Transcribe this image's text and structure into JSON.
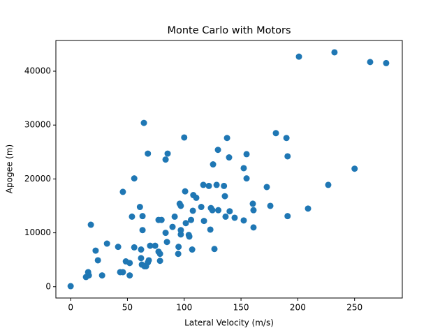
{
  "chart_data": {
    "type": "scatter",
    "title": "Monte Carlo with Motors",
    "xlabel": "Lateral Velocity (m/s)",
    "ylabel": "Apogee (m)",
    "color": "#1f77b4",
    "x": [
      0,
      13.5,
      15.4,
      16,
      17.8,
      22,
      24,
      27.7,
      32,
      41.8,
      43.6,
      46,
      46,
      48.6,
      52,
      52,
      54,
      56,
      56,
      61,
      62,
      62,
      62.7,
      63.3,
      63.3,
      64.5,
      65,
      66.4,
      68,
      68,
      68.8,
      70,
      74.4,
      77.4,
      77.4,
      78.7,
      78.7,
      80,
      83.6,
      83.6,
      84.8,
      85.4,
      89.7,
      91.6,
      94.7,
      95,
      96,
      97,
      97,
      97,
      100,
      100.8,
      101.4,
      104,
      104.5,
      106,
      107,
      107.6,
      108,
      110.6,
      115,
      116.8,
      117.4,
      121.7,
      123,
      123.5,
      124.8,
      125.4,
      126.6,
      128.5,
      129.7,
      130,
      135,
      135.8,
      136.4,
      137.7,
      139.5,
      140,
      144.4,
      152.4,
      152.4,
      154.9,
      154.9,
      160.4,
      161,
      161,
      172.7,
      175.8,
      180.7,
      190,
      191,
      191,
      201,
      209,
      226.8,
      232.3,
      250,
      263.7,
      277.8
    ],
    "values": [
      100,
      1800,
      2700,
      2100,
      11500,
      6700,
      4900,
      2100,
      8000,
      7400,
      2700,
      2700,
      17600,
      4700,
      4400,
      2100,
      13000,
      20100,
      7300,
      14800,
      5300,
      6900,
      4100,
      10500,
      13100,
      30400,
      3800,
      3800,
      4500,
      24700,
      4900,
      7600,
      7600,
      6500,
      12400,
      4800,
      6100,
      12400,
      23600,
      10000,
      8300,
      24700,
      11100,
      13000,
      6100,
      7400,
      15400,
      15000,
      9700,
      10500,
      27700,
      17700,
      11800,
      9600,
      9300,
      12400,
      6900,
      14100,
      17000,
      16500,
      14800,
      18900,
      12200,
      18700,
      10600,
      14600,
      14200,
      22700,
      7000,
      18900,
      25400,
      14200,
      18700,
      16800,
      13000,
      27600,
      24000,
      14000,
      12800,
      22000,
      12300,
      24600,
      20100,
      15400,
      14200,
      11000,
      18500,
      15000,
      28500,
      27600,
      24200,
      13100,
      42700,
      14500,
      18900,
      43500,
      21900,
      41700,
      41500
    ],
    "xlim": [
      -13,
      292
    ],
    "xticks": [
      0,
      50,
      100,
      150,
      200,
      250
    ],
    "ylim": [
      -2100,
      45700
    ],
    "yticks": [
      0,
      10000,
      20000,
      30000,
      40000
    ]
  }
}
